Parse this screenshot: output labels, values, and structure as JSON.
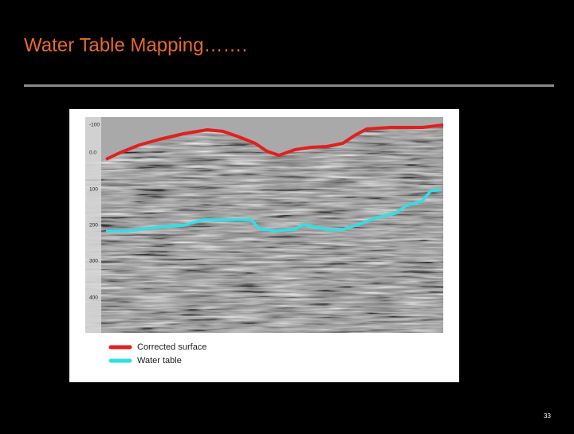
{
  "slide": {
    "title": "Water Table Mapping…….",
    "page_number": "33"
  },
  "figure": {
    "depth_labels": [
      "-100",
      "0.0",
      "100",
      "200",
      "300",
      "400"
    ],
    "legend": [
      {
        "label": "Corrected surface"
      },
      {
        "label": "Water table"
      }
    ]
  }
}
